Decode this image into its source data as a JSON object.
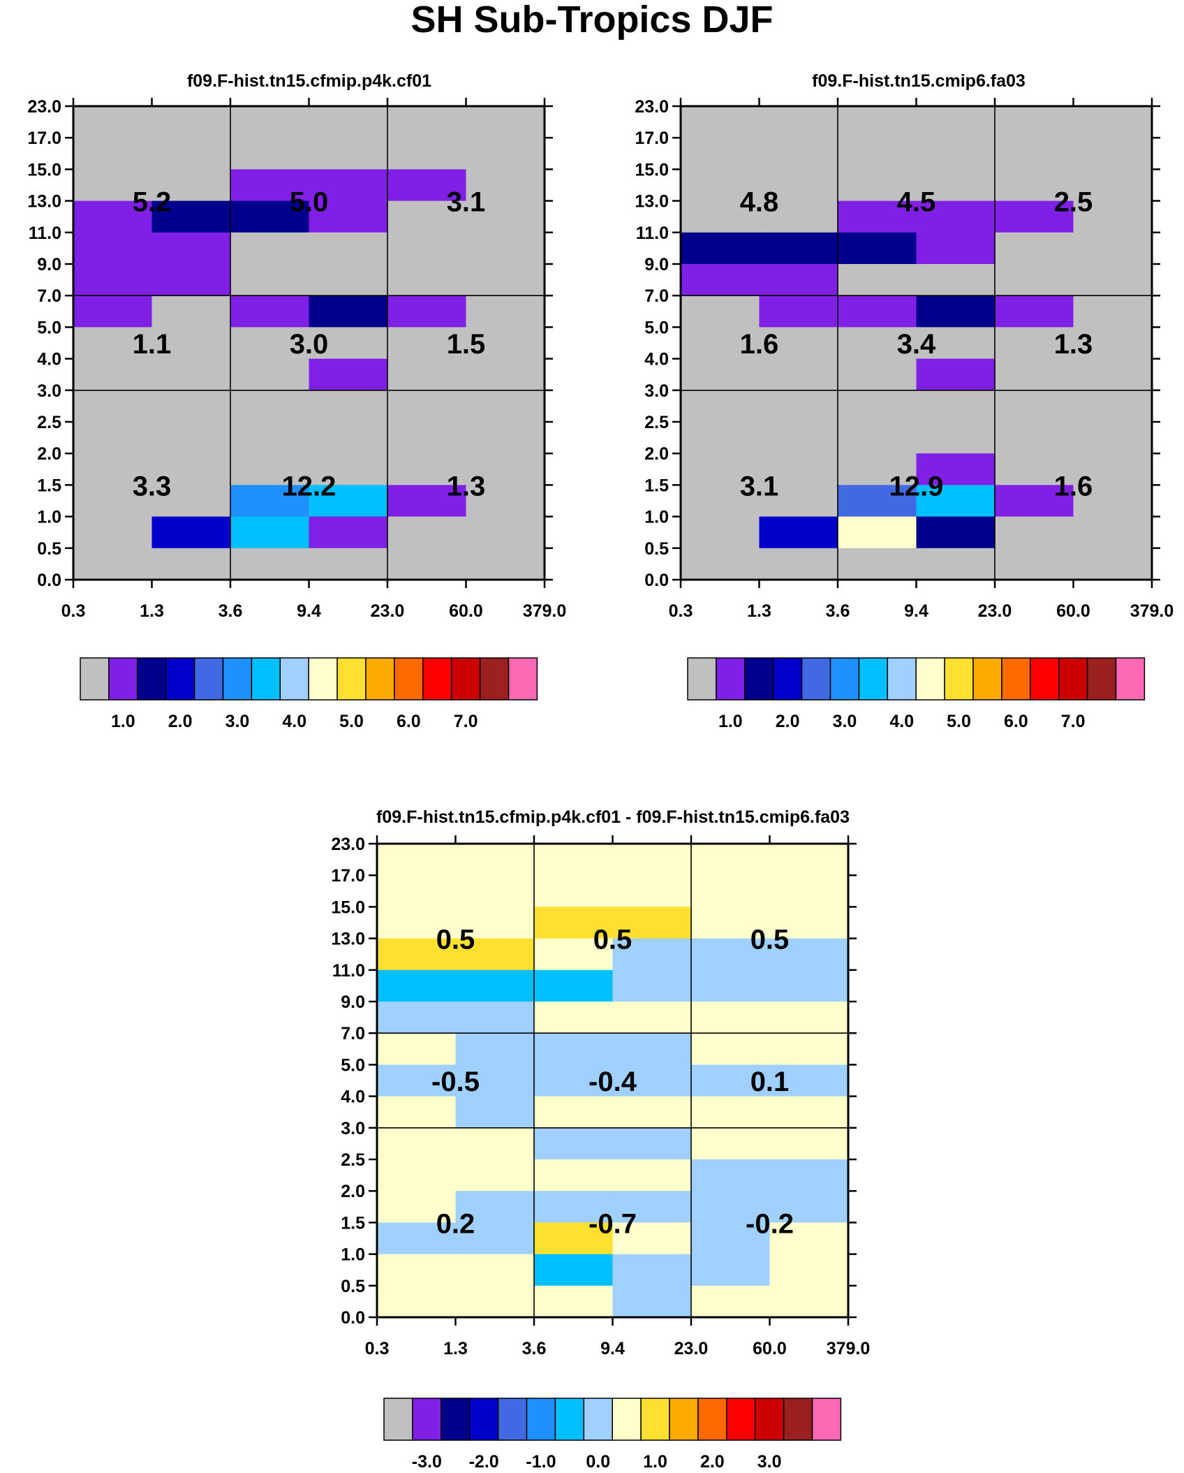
{
  "title": "SH Sub-Tropics DJF",
  "y_ticks": [
    "0.0",
    "0.5",
    "1.0",
    "1.5",
    "2.0",
    "2.5",
    "3.0",
    "4.0",
    "5.0",
    "7.0",
    "9.0",
    "11.0",
    "13.0",
    "15.0",
    "17.0",
    "23.0"
  ],
  "x_ticks": [
    "0.3",
    "1.3",
    "3.6",
    "9.4",
    "23.0",
    "60.0",
    "379.0"
  ],
  "colors": {
    "palette": [
      "#c0c0c0",
      "#8020e6",
      "#00008c",
      "#0000cc",
      "#4169e1",
      "#1e90ff",
      "#00bfff",
      "#a0d0ff",
      "#ffffcc",
      "#ffe030",
      "#ffaa00",
      "#ff6a00",
      "#ff0000",
      "#cc0000",
      "#9b2020",
      "#ff69b4"
    ]
  },
  "colorbars": {
    "abs": {
      "labels": [
        "1.0",
        "2.0",
        "3.0",
        "4.0",
        "5.0",
        "6.0",
        "7.0"
      ]
    },
    "diff": {
      "labels": [
        "-3.0",
        "-2.0",
        "-1.0",
        "0.0",
        "1.0",
        "2.0",
        "3.0"
      ]
    }
  },
  "chart_data": [
    {
      "type": "heatmap",
      "title": "f09.F-hist.tn15.cfmip.p4k.cf01",
      "xlabel": "",
      "ylabel": "",
      "x": [
        "0.3",
        "1.3",
        "3.6",
        "9.4",
        "23.0",
        "60.0",
        "379.0"
      ],
      "y": [
        "0.0",
        "0.5",
        "1.0",
        "1.5",
        "2.0",
        "2.5",
        "3.0",
        "4.0",
        "5.0",
        "7.0",
        "9.0",
        "11.0",
        "13.0",
        "15.0",
        "17.0",
        "23.0"
      ],
      "cell_color_index_rows_top_to_bottom": [
        [
          0,
          0,
          0,
          0,
          0,
          0
        ],
        [
          0,
          0,
          0,
          0,
          0,
          0
        ],
        [
          0,
          0,
          1,
          1,
          1,
          0
        ],
        [
          1,
          2,
          2,
          1,
          0,
          0
        ],
        [
          1,
          1,
          0,
          0,
          0,
          0
        ],
        [
          1,
          1,
          0,
          0,
          0,
          0
        ],
        [
          1,
          0,
          1,
          2,
          1,
          0
        ],
        [
          0,
          0,
          0,
          0,
          0,
          0
        ],
        [
          0,
          0,
          0,
          1,
          0,
          0
        ],
        [
          0,
          0,
          0,
          0,
          0,
          0
        ],
        [
          0,
          0,
          0,
          0,
          0,
          0
        ],
        [
          0,
          0,
          0,
          0,
          0,
          0
        ],
        [
          0,
          0,
          5,
          6,
          1,
          0
        ],
        [
          0,
          3,
          6,
          1,
          0,
          0
        ],
        [
          0,
          0,
          0,
          0,
          0,
          0
        ]
      ],
      "box_values": [
        [
          "5.2",
          "5.0",
          "3.1"
        ],
        [
          "1.1",
          "3.0",
          "1.5"
        ],
        [
          "3.3",
          "12.2",
          "1.3"
        ]
      ]
    },
    {
      "type": "heatmap",
      "title": "f09.F-hist.tn15.cmip6.fa03",
      "xlabel": "",
      "ylabel": "",
      "x": [
        "0.3",
        "1.3",
        "3.6",
        "9.4",
        "23.0",
        "60.0",
        "379.0"
      ],
      "y": [
        "0.0",
        "0.5",
        "1.0",
        "1.5",
        "2.0",
        "2.5",
        "3.0",
        "4.0",
        "5.0",
        "7.0",
        "9.0",
        "11.0",
        "13.0",
        "15.0",
        "17.0",
        "23.0"
      ],
      "cell_color_index_rows_top_to_bottom": [
        [
          0,
          0,
          0,
          0,
          0,
          0
        ],
        [
          0,
          0,
          0,
          0,
          0,
          0
        ],
        [
          0,
          0,
          0,
          0,
          0,
          0
        ],
        [
          0,
          0,
          1,
          1,
          1,
          0
        ],
        [
          2,
          2,
          2,
          1,
          0,
          0
        ],
        [
          1,
          1,
          0,
          0,
          0,
          0
        ],
        [
          0,
          1,
          1,
          2,
          1,
          0
        ],
        [
          0,
          0,
          0,
          0,
          0,
          0
        ],
        [
          0,
          0,
          0,
          1,
          0,
          0
        ],
        [
          0,
          0,
          0,
          0,
          0,
          0
        ],
        [
          0,
          0,
          0,
          0,
          0,
          0
        ],
        [
          0,
          0,
          0,
          1,
          0,
          0
        ],
        [
          0,
          0,
          4,
          6,
          1,
          0
        ],
        [
          0,
          3,
          8,
          2,
          0,
          0
        ],
        [
          0,
          0,
          0,
          0,
          0,
          0
        ]
      ],
      "box_values": [
        [
          "4.8",
          "4.5",
          "2.5"
        ],
        [
          "1.6",
          "3.4",
          "1.3"
        ],
        [
          "3.1",
          "12.9",
          "1.6"
        ]
      ]
    },
    {
      "type": "heatmap",
      "title": "f09.F-hist.tn15.cfmip.p4k.cf01 - f09.F-hist.tn15.cmip6.fa03",
      "xlabel": "",
      "ylabel": "",
      "x": [
        "0.3",
        "1.3",
        "3.6",
        "9.4",
        "23.0",
        "60.0",
        "379.0"
      ],
      "y": [
        "0.0",
        "0.5",
        "1.0",
        "1.5",
        "2.0",
        "2.5",
        "3.0",
        "4.0",
        "5.0",
        "7.0",
        "9.0",
        "11.0",
        "13.0",
        "15.0",
        "17.0",
        "23.0"
      ],
      "cell_color_index_rows_top_to_bottom": [
        [
          8,
          8,
          8,
          8,
          8,
          8
        ],
        [
          8,
          8,
          8,
          8,
          8,
          8
        ],
        [
          8,
          8,
          9,
          9,
          8,
          8
        ],
        [
          9,
          9,
          8,
          7,
          7,
          7
        ],
        [
          6,
          6,
          6,
          7,
          7,
          7
        ],
        [
          7,
          7,
          8,
          8,
          8,
          8
        ],
        [
          8,
          7,
          7,
          7,
          8,
          8
        ],
        [
          7,
          7,
          7,
          7,
          7,
          7
        ],
        [
          8,
          7,
          8,
          8,
          8,
          8
        ],
        [
          8,
          8,
          7,
          7,
          8,
          8
        ],
        [
          8,
          8,
          8,
          8,
          7,
          7
        ],
        [
          8,
          7,
          7,
          7,
          7,
          7
        ],
        [
          7,
          7,
          9,
          8,
          7,
          8
        ],
        [
          8,
          8,
          6,
          7,
          7,
          8
        ],
        [
          8,
          8,
          8,
          7,
          8,
          8
        ]
      ],
      "box_values": [
        [
          "0.5",
          "0.5",
          "0.5"
        ],
        [
          "-0.5",
          "-0.4",
          "0.1"
        ],
        [
          "0.2",
          "-0.7",
          "-0.2"
        ]
      ]
    }
  ]
}
